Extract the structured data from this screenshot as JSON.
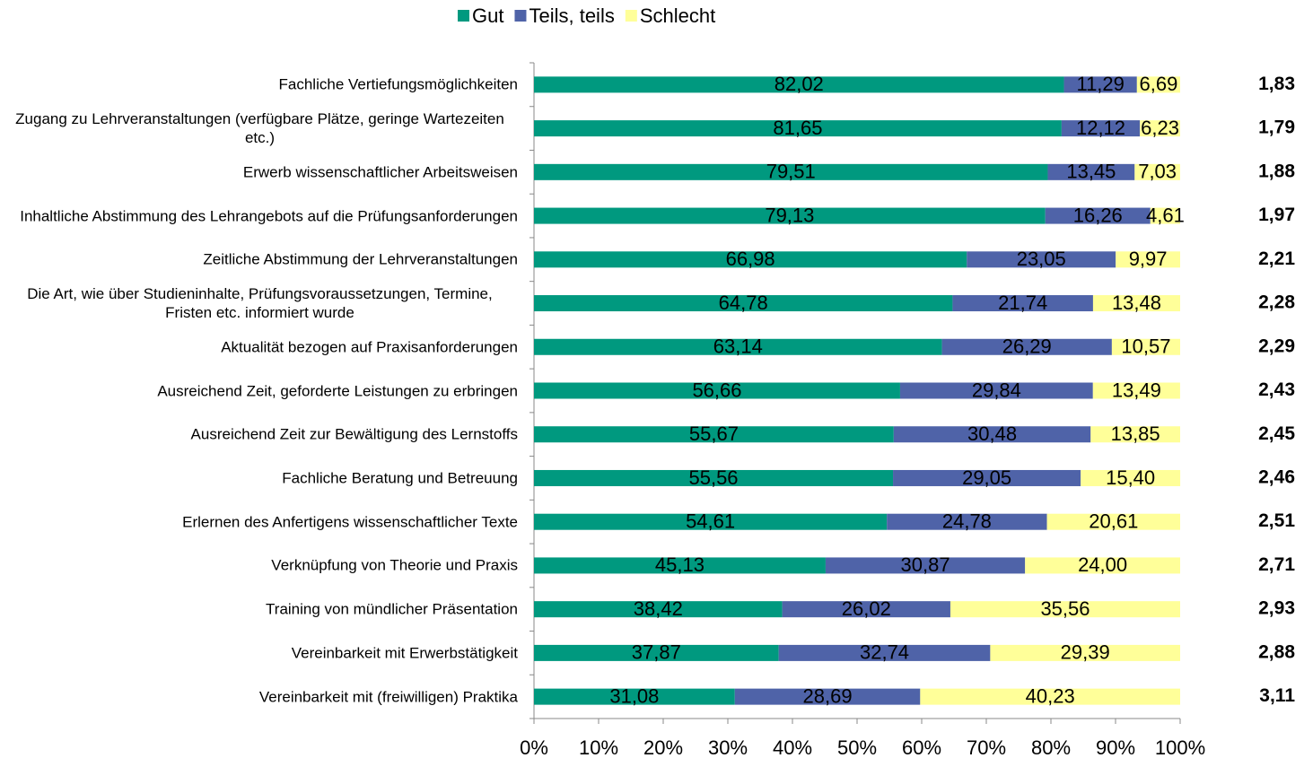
{
  "chart_data": {
    "type": "stacked_barh",
    "categories": [
      "Fachliche Vertiefungsmöglichkeiten",
      "Zugang zu Lehrveranstaltungen (verfügbare Plätze, geringe Wartezeiten etc.)",
      "Erwerb wissenschaftlicher Arbeitsweisen",
      "Inhaltliche Abstimmung des Lehrangebots auf die Prüfungsanforderungen",
      "Zeitliche Abstimmung der Lehrveranstaltungen",
      "Die Art, wie über Studieninhalte, Prüfungsvoraussetzungen, Termine, Fristen etc. informiert wurde",
      "Aktualität bezogen auf Praxisanforderungen",
      "Ausreichend Zeit, geforderte Leistungen zu erbringen",
      "Ausreichend Zeit zur Bewältigung des Lernstoffs",
      "Fachliche Beratung und Betreuung",
      "Erlernen des Anfertigens wissenschaftlicher Texte",
      "Verknüpfung von Theorie und Praxis",
      "Training von mündlicher Präsentation",
      "Vereinbarkeit mit Erwerbstätigkeit",
      "Vereinbarkeit mit (freiwilligen) Praktika"
    ],
    "series": [
      {
        "name": "Gut",
        "color": "#00997f",
        "values": [
          82.02,
          81.65,
          79.51,
          79.13,
          66.98,
          64.78,
          63.14,
          56.66,
          55.67,
          55.56,
          54.61,
          45.13,
          38.42,
          37.87,
          31.08
        ],
        "value_labels": [
          "82,02",
          "81,65",
          "79,51",
          "79,13",
          "66,98",
          "64,78",
          "63,14",
          "56,66",
          "55,67",
          "55,56",
          "54,61",
          "45,13",
          "38,42",
          "37,87",
          "31,08"
        ]
      },
      {
        "name": "Teils, teils",
        "color": "#4f63a8",
        "values": [
          11.29,
          12.12,
          13.45,
          16.26,
          23.05,
          21.74,
          26.29,
          29.84,
          30.48,
          29.05,
          24.78,
          30.87,
          26.02,
          32.74,
          28.69
        ],
        "value_labels": [
          "11,29",
          "12,12",
          "13,45",
          "16,26",
          "23,05",
          "21,74",
          "26,29",
          "29,84",
          "30,48",
          "29,05",
          "24,78",
          "30,87",
          "26,02",
          "32,74",
          "28,69"
        ]
      },
      {
        "name": "Schlecht",
        "color": "#ffff99",
        "values": [
          6.69,
          6.23,
          7.03,
          4.61,
          9.97,
          13.48,
          10.57,
          13.49,
          13.85,
          15.4,
          20.61,
          24.0,
          35.56,
          29.39,
          40.23
        ],
        "value_labels": [
          "6,69",
          "6,23",
          "7,03",
          "4,61",
          "9,97",
          "13,48",
          "10,57",
          "13,49",
          "13,85",
          "15,40",
          "20,61",
          "24,00",
          "35,56",
          "29,39",
          "40,23"
        ]
      }
    ],
    "means": [
      1.83,
      1.79,
      1.88,
      1.97,
      2.21,
      2.28,
      2.29,
      2.43,
      2.45,
      2.46,
      2.51,
      2.71,
      2.93,
      2.88,
      3.11
    ],
    "mean_labels": [
      "1,83",
      "1,79",
      "1,88",
      "1,97",
      "2,21",
      "2,28",
      "2,29",
      "2,43",
      "2,45",
      "2,46",
      "2,51",
      "2,71",
      "2,93",
      "2,88",
      "3,11"
    ],
    "xlim": [
      0,
      100
    ],
    "xticks": [
      {
        "value": 0,
        "label": "0%"
      },
      {
        "value": 10,
        "label": "10%"
      },
      {
        "value": 20,
        "label": "20%"
      },
      {
        "value": 30,
        "label": "30%"
      },
      {
        "value": 40,
        "label": "40%"
      },
      {
        "value": 50,
        "label": "50%"
      },
      {
        "value": 60,
        "label": "60%"
      },
      {
        "value": 70,
        "label": "70%"
      },
      {
        "value": 80,
        "label": "80%"
      },
      {
        "value": 90,
        "label": "90%"
      },
      {
        "value": 100,
        "label": "100%"
      }
    ],
    "legend": "top"
  }
}
